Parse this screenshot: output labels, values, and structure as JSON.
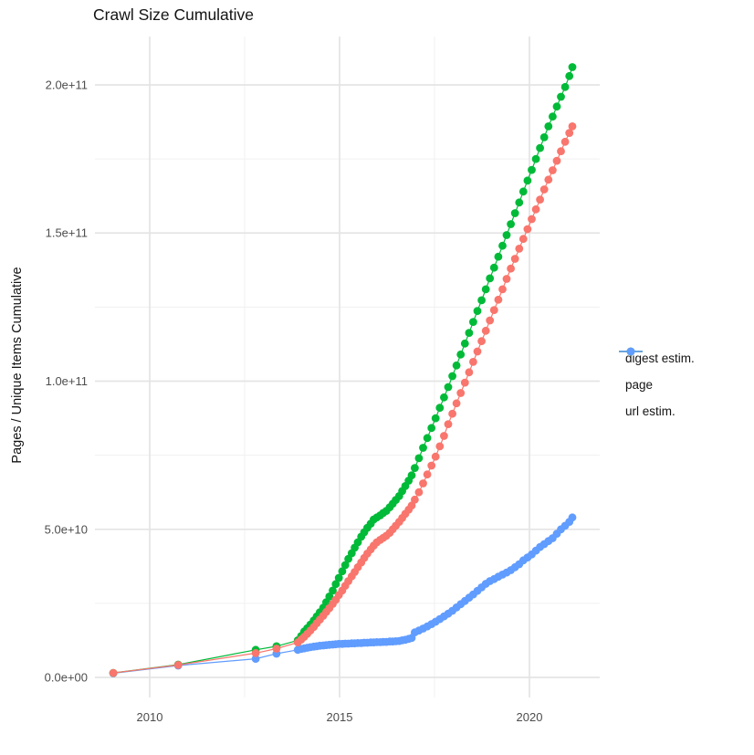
{
  "chart_data": {
    "type": "scatter",
    "title": "Crawl Size Cumulative",
    "xlabel": "",
    "ylabel": "Pages / Unique Items Cumulative",
    "legend_position": "right",
    "grid": true,
    "point_style": "dot-with-line",
    "xlim": [
      2008.5,
      2021.7
    ],
    "ylim": [
      0,
      210000000000.0
    ],
    "x_axis": {
      "ticks": [
        {
          "value": 2010,
          "label": "2010"
        },
        {
          "value": 2015,
          "label": "2015"
        },
        {
          "value": 2020,
          "label": "2020"
        }
      ],
      "minor": [
        2012.5,
        2017.5
      ]
    },
    "y_axis": {
      "ticks": [
        {
          "value": 0,
          "label": "0.0e+00"
        },
        {
          "value": 50000000000.0,
          "label": "5.0e+10"
        },
        {
          "value": 100000000000.0,
          "label": "1.0e+11"
        },
        {
          "value": 150000000000.0,
          "label": "1.5e+11"
        },
        {
          "value": 200000000000.0,
          "label": "2.0e+11"
        }
      ],
      "minor": [
        25000000000.0,
        75000000000.0,
        125000000000.0,
        175000000000.0
      ]
    },
    "grid_major_color": "#e4e4e4",
    "grid_minor_color": "#f0f0f0",
    "text_color": "#141414",
    "tick_color": "#4d4d4d",
    "series": [
      {
        "name": "digest estim.",
        "color": "#F8766D",
        "points": [
          [
            2009.04,
            1500000000.0
          ],
          [
            2010.75,
            4200000000.0
          ],
          [
            2012.79,
            8200000000.0
          ],
          [
            2013.34,
            9700000000.0
          ],
          [
            2013.9,
            11800000000.0
          ],
          [
            2013.99,
            12800000000.0
          ],
          [
            2014.07,
            13700000000.0
          ],
          [
            2014.15,
            14700000000.0
          ],
          [
            2014.23,
            15800000000.0
          ],
          [
            2014.32,
            17000000000.0
          ],
          [
            2014.4,
            18300000000.0
          ],
          [
            2014.48,
            19500000000.0
          ],
          [
            2014.57,
            20800000000.0
          ],
          [
            2014.65,
            22100000000.0
          ],
          [
            2014.73,
            23400000000.0
          ],
          [
            2014.82,
            24800000000.0
          ],
          [
            2014.9,
            26200000000.0
          ],
          [
            2014.98,
            27800000000.0
          ],
          [
            2015.07,
            29300000000.0
          ],
          [
            2015.15,
            30900000000.0
          ],
          [
            2015.23,
            32500000000.0
          ],
          [
            2015.32,
            34100000000.0
          ],
          [
            2015.4,
            35600000000.0
          ],
          [
            2015.48,
            37200000000.0
          ],
          [
            2015.57,
            38800000000.0
          ],
          [
            2015.65,
            40300000000.0
          ],
          [
            2015.73,
            41800000000.0
          ],
          [
            2015.82,
            43200000000.0
          ],
          [
            2015.9,
            44500000000.0
          ],
          [
            2015.98,
            45600000000.0
          ],
          [
            2016.07,
            46400000000.0
          ],
          [
            2016.15,
            47100000000.0
          ],
          [
            2016.23,
            47800000000.0
          ],
          [
            2016.32,
            48800000000.0
          ],
          [
            2016.4,
            50000000000.0
          ],
          [
            2016.48,
            51200000000.0
          ],
          [
            2016.57,
            52500000000.0
          ],
          [
            2016.65,
            53800000000.0
          ],
          [
            2016.73,
            55200000000.0
          ],
          [
            2016.82,
            56600000000.0
          ],
          [
            2016.9,
            58000000000.0
          ],
          [
            2016.98,
            60000000000.0
          ],
          [
            2017.09,
            62500000000.0
          ],
          [
            2017.2,
            65500000000.0
          ],
          [
            2017.31,
            68500000000.0
          ],
          [
            2017.42,
            71500000000.0
          ],
          [
            2017.53,
            74500000000.0
          ],
          [
            2017.64,
            78000000000.0
          ],
          [
            2017.75,
            81500000000.0
          ],
          [
            2017.86,
            85500000000.0
          ],
          [
            2017.97,
            89000000000.0
          ],
          [
            2018.08,
            92500000000.0
          ],
          [
            2018.19,
            96000000000.0
          ],
          [
            2018.3,
            99500000000.0
          ],
          [
            2018.41,
            103000000000.0
          ],
          [
            2018.52,
            106500000000.0
          ],
          [
            2018.63,
            110000000000.0
          ],
          [
            2018.74,
            113500000000.0
          ],
          [
            2018.85,
            117000000000.0
          ],
          [
            2018.96,
            120500000000.0
          ],
          [
            2019.07,
            124000000000.0
          ],
          [
            2019.18,
            127500000000.0
          ],
          [
            2019.29,
            131000000000.0
          ],
          [
            2019.4,
            134500000000.0
          ],
          [
            2019.51,
            138000000000.0
          ],
          [
            2019.62,
            141300000000.0
          ],
          [
            2019.73,
            144700000000.0
          ],
          [
            2019.84,
            148000000000.0
          ],
          [
            2019.95,
            151300000000.0
          ],
          [
            2020.06,
            154700000000.0
          ],
          [
            2020.17,
            158000000000.0
          ],
          [
            2020.28,
            161300000000.0
          ],
          [
            2020.39,
            164700000000.0
          ],
          [
            2020.5,
            168000000000.0
          ],
          [
            2020.61,
            171200000000.0
          ],
          [
            2020.72,
            174400000000.0
          ],
          [
            2020.83,
            177600000000.0
          ],
          [
            2020.94,
            180800000000.0
          ],
          [
            2021.05,
            183800000000.0
          ],
          [
            2021.13,
            186000000000.0
          ]
        ]
      },
      {
        "name": "page",
        "color": "#00BA38",
        "points": [
          [
            2009.04,
            1500000000.0
          ],
          [
            2010.75,
            4300000000.0
          ],
          [
            2012.79,
            9300000000.0
          ],
          [
            2013.34,
            10500000000.0
          ],
          [
            2013.9,
            12500000000.0
          ],
          [
            2013.99,
            14000000000.0
          ],
          [
            2014.07,
            15500000000.0
          ],
          [
            2014.15,
            16600000000.0
          ],
          [
            2014.23,
            17800000000.0
          ],
          [
            2014.32,
            19200000000.0
          ],
          [
            2014.4,
            20600000000.0
          ],
          [
            2014.48,
            22000000000.0
          ],
          [
            2014.57,
            23500000000.0
          ],
          [
            2014.65,
            25400000000.0
          ],
          [
            2014.73,
            27300000000.0
          ],
          [
            2014.82,
            29300000000.0
          ],
          [
            2014.9,
            31500000000.0
          ],
          [
            2014.98,
            33600000000.0
          ],
          [
            2015.07,
            35800000000.0
          ],
          [
            2015.15,
            37900000000.0
          ],
          [
            2015.23,
            40000000000.0
          ],
          [
            2015.32,
            41900000000.0
          ],
          [
            2015.4,
            43800000000.0
          ],
          [
            2015.48,
            45600000000.0
          ],
          [
            2015.57,
            47500000000.0
          ],
          [
            2015.65,
            49000000000.0
          ],
          [
            2015.73,
            50500000000.0
          ],
          [
            2015.82,
            51900000000.0
          ],
          [
            2015.9,
            53300000000.0
          ],
          [
            2015.98,
            54000000000.0
          ],
          [
            2016.07,
            54700000000.0
          ],
          [
            2016.15,
            55500000000.0
          ],
          [
            2016.23,
            56200000000.0
          ],
          [
            2016.32,
            57400000000.0
          ],
          [
            2016.4,
            58600000000.0
          ],
          [
            2016.48,
            59900000000.0
          ],
          [
            2016.57,
            61200000000.0
          ],
          [
            2016.65,
            62900000000.0
          ],
          [
            2016.73,
            64600000000.0
          ],
          [
            2016.82,
            66400000000.0
          ],
          [
            2016.9,
            68200000000.0
          ],
          [
            2016.98,
            70700000000.0
          ],
          [
            2017.09,
            74000000000.0
          ],
          [
            2017.2,
            77500000000.0
          ],
          [
            2017.31,
            80800000000.0
          ],
          [
            2017.42,
            84200000000.0
          ],
          [
            2017.53,
            87500000000.0
          ],
          [
            2017.64,
            91000000000.0
          ],
          [
            2017.75,
            94500000000.0
          ],
          [
            2017.86,
            98000000000.0
          ],
          [
            2017.97,
            101700000000.0
          ],
          [
            2018.08,
            105300000000.0
          ],
          [
            2018.19,
            109000000000.0
          ],
          [
            2018.3,
            112700000000.0
          ],
          [
            2018.41,
            116300000000.0
          ],
          [
            2018.52,
            120000000000.0
          ],
          [
            2018.63,
            123700000000.0
          ],
          [
            2018.74,
            127300000000.0
          ],
          [
            2018.85,
            131000000000.0
          ],
          [
            2018.96,
            134700000000.0
          ],
          [
            2019.07,
            138300000000.0
          ],
          [
            2019.18,
            142000000000.0
          ],
          [
            2019.29,
            145700000000.0
          ],
          [
            2019.4,
            149300000000.0
          ],
          [
            2019.51,
            153000000000.0
          ],
          [
            2019.62,
            156700000000.0
          ],
          [
            2019.73,
            160300000000.0
          ],
          [
            2019.84,
            164000000000.0
          ],
          [
            2019.95,
            167700000000.0
          ],
          [
            2020.06,
            171300000000.0
          ],
          [
            2020.17,
            175000000000.0
          ],
          [
            2020.28,
            178700000000.0
          ],
          [
            2020.39,
            182300000000.0
          ],
          [
            2020.5,
            186000000000.0
          ],
          [
            2020.61,
            189300000000.0
          ],
          [
            2020.72,
            192700000000.0
          ],
          [
            2020.83,
            196000000000.0
          ],
          [
            2020.94,
            199300000000.0
          ],
          [
            2021.05,
            203000000000.0
          ],
          [
            2021.13,
            206000000000.0
          ]
        ]
      },
      {
        "name": "url estim.",
        "color": "#619CFF",
        "points": [
          [
            2009.04,
            1400000000.0
          ],
          [
            2010.75,
            4000000000.0
          ],
          [
            2012.79,
            6300000000.0
          ],
          [
            2013.34,
            8000000000.0
          ],
          [
            2013.9,
            9300000000.0
          ],
          [
            2013.99,
            9600000000.0
          ],
          [
            2014.07,
            9800000000.0
          ],
          [
            2014.15,
            10000000000.0
          ],
          [
            2014.23,
            10200000000.0
          ],
          [
            2014.32,
            10400000000.0
          ],
          [
            2014.4,
            10500000000.0
          ],
          [
            2014.48,
            10700000000.0
          ],
          [
            2014.57,
            10800000000.0
          ],
          [
            2014.65,
            10900000000.0
          ],
          [
            2014.73,
            11000000000.0
          ],
          [
            2014.82,
            11100000000.0
          ],
          [
            2014.9,
            11200000000.0
          ],
          [
            2014.98,
            11300000000.0
          ],
          [
            2015.07,
            11300000000.0
          ],
          [
            2015.15,
            11400000000.0
          ],
          [
            2015.23,
            11400000000.0
          ],
          [
            2015.32,
            11500000000.0
          ],
          [
            2015.4,
            11500000000.0
          ],
          [
            2015.48,
            11600000000.0
          ],
          [
            2015.57,
            11600000000.0
          ],
          [
            2015.65,
            11700000000.0
          ],
          [
            2015.73,
            11700000000.0
          ],
          [
            2015.82,
            11800000000.0
          ],
          [
            2015.9,
            11800000000.0
          ],
          [
            2015.98,
            11900000000.0
          ],
          [
            2016.07,
            11900000000.0
          ],
          [
            2016.15,
            12000000000.0
          ],
          [
            2016.23,
            12000000000.0
          ],
          [
            2016.32,
            12100000000.0
          ],
          [
            2016.4,
            12100000000.0
          ],
          [
            2016.48,
            12200000000.0
          ],
          [
            2016.57,
            12300000000.0
          ],
          [
            2016.65,
            12500000000.0
          ],
          [
            2016.73,
            12700000000.0
          ],
          [
            2016.82,
            13000000000.0
          ],
          [
            2016.9,
            13300000000.0
          ],
          [
            2016.98,
            15200000000.0
          ],
          [
            2017.09,
            15800000000.0
          ],
          [
            2017.2,
            16500000000.0
          ],
          [
            2017.31,
            17200000000.0
          ],
          [
            2017.42,
            18000000000.0
          ],
          [
            2017.53,
            18800000000.0
          ],
          [
            2017.64,
            19700000000.0
          ],
          [
            2017.75,
            20600000000.0
          ],
          [
            2017.86,
            21500000000.0
          ],
          [
            2017.97,
            22500000000.0
          ],
          [
            2018.08,
            23600000000.0
          ],
          [
            2018.19,
            24700000000.0
          ],
          [
            2018.3,
            25800000000.0
          ],
          [
            2018.41,
            26900000000.0
          ],
          [
            2018.52,
            28000000000.0
          ],
          [
            2018.63,
            29200000000.0
          ],
          [
            2018.74,
            30400000000.0
          ],
          [
            2018.85,
            31600000000.0
          ],
          [
            2018.96,
            32500000000.0
          ],
          [
            2019.07,
            33200000000.0
          ],
          [
            2019.18,
            34000000000.0
          ],
          [
            2019.29,
            34700000000.0
          ],
          [
            2019.4,
            35400000000.0
          ],
          [
            2019.51,
            36200000000.0
          ],
          [
            2019.62,
            37200000000.0
          ],
          [
            2019.73,
            38200000000.0
          ],
          [
            2019.84,
            39500000000.0
          ],
          [
            2019.95,
            40500000000.0
          ],
          [
            2020.06,
            41500000000.0
          ],
          [
            2020.17,
            42800000000.0
          ],
          [
            2020.28,
            44000000000.0
          ],
          [
            2020.39,
            45000000000.0
          ],
          [
            2020.5,
            46000000000.0
          ],
          [
            2020.61,
            47000000000.0
          ],
          [
            2020.72,
            48500000000.0
          ],
          [
            2020.83,
            50000000000.0
          ],
          [
            2020.94,
            51200000000.0
          ],
          [
            2021.05,
            52500000000.0
          ],
          [
            2021.13,
            54000000000.0
          ]
        ]
      }
    ]
  }
}
